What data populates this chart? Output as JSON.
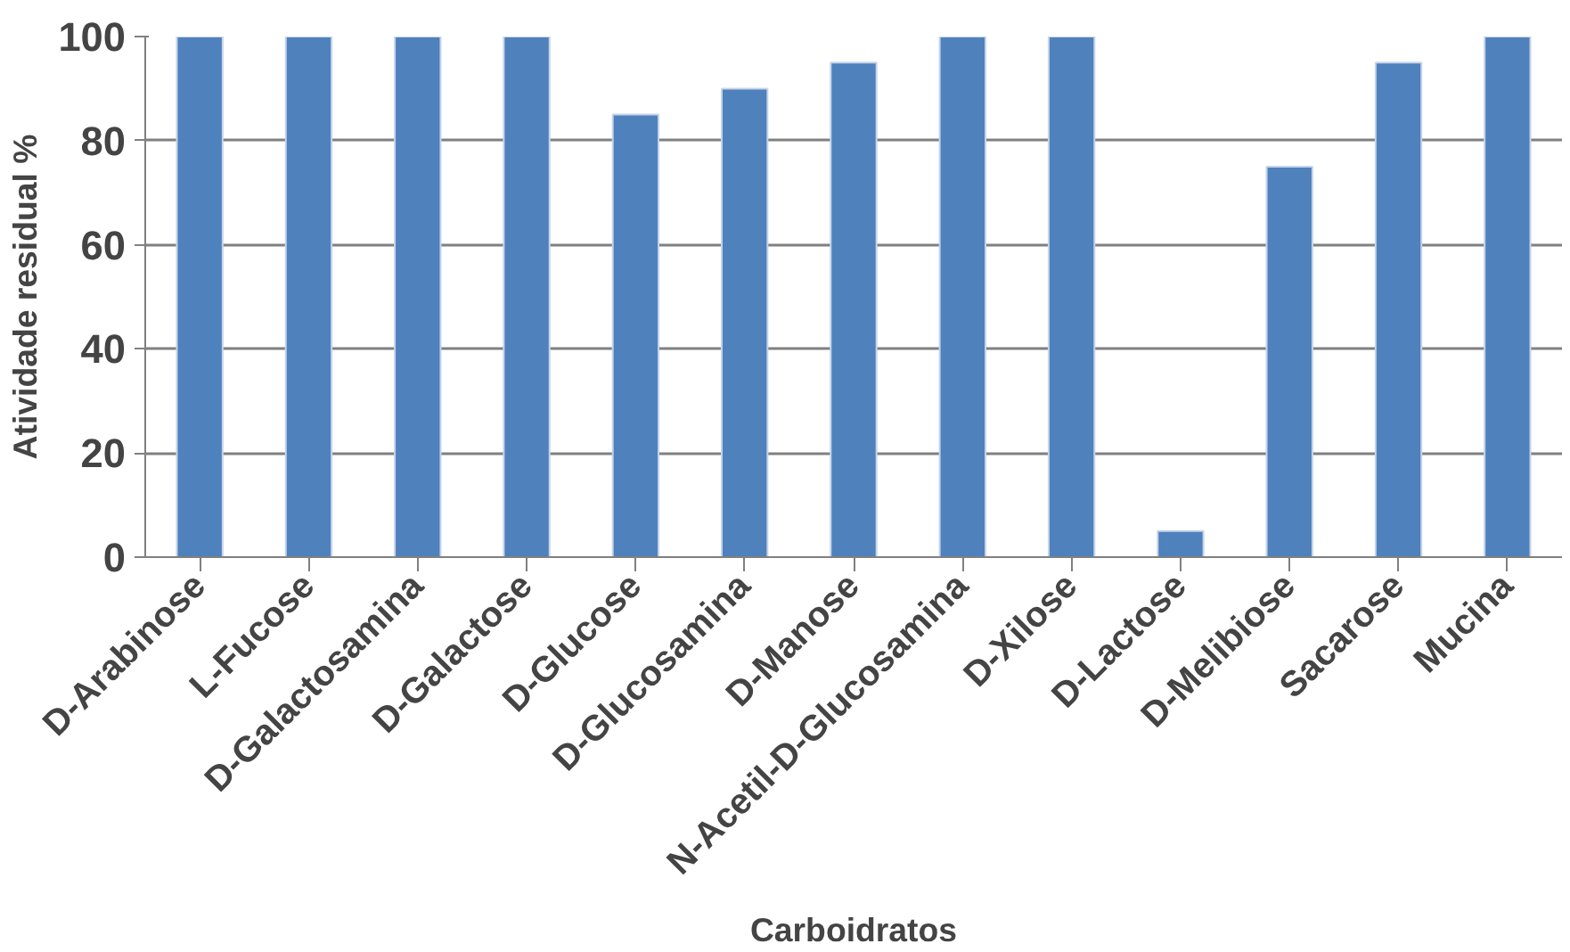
{
  "chart_data": {
    "type": "bar",
    "xlabel": "Carboidratos",
    "ylabel": "Atividade residual %",
    "categories": [
      "D-Arabinose",
      "L-Fucose",
      "D-Galactosamina",
      "D-Galactose",
      "D-Glucose",
      "D-Glucosamina",
      "D-Manose",
      "N-Acetil-D-Glucosamina",
      "D-Xilose",
      "D-Lactose",
      "D-Melibiose",
      "Sacarose",
      "Mucina"
    ],
    "values": [
      100,
      100,
      100,
      100,
      85,
      90,
      95,
      100,
      100,
      5,
      75,
      95,
      100
    ],
    "color": "#4f81bd",
    "ylim": [
      0,
      100
    ],
    "yticks": [
      0,
      20,
      40,
      60,
      80,
      100
    ],
    "grid": "y"
  }
}
